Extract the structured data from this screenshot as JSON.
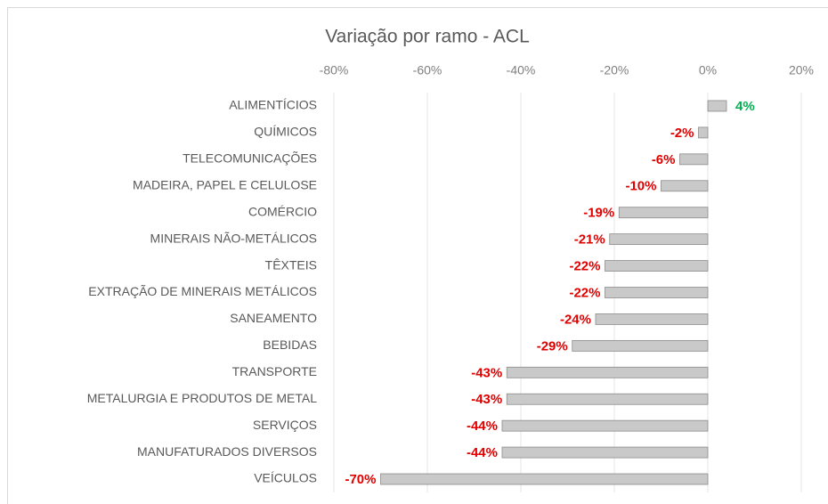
{
  "chart_data": {
    "type": "bar",
    "orientation": "horizontal",
    "title": "Variação por ramo - ACL",
    "categories": [
      "ALIMENTÍCIOS",
      "QUÍMICOS",
      "TELECOMUNICAÇÕES",
      "MADEIRA, PAPEL E CELULOSE",
      "COMÉRCIO",
      "MINERAIS NÃO-METÁLICOS",
      "TÊXTEIS",
      "EXTRAÇÃO DE MINERAIS METÁLICOS",
      "SANEAMENTO",
      "BEBIDAS",
      "TRANSPORTE",
      "METALURGIA E PRODUTOS DE METAL",
      "SERVIÇOS",
      "MANUFATURADOS DIVERSOS",
      "VEÍCULOS"
    ],
    "values": [
      4,
      -2,
      -6,
      -10,
      -19,
      -21,
      -22,
      -22,
      -24,
      -29,
      -43,
      -43,
      -44,
      -44,
      -70
    ],
    "value_labels": [
      "4%",
      "-2%",
      "-6%",
      "-10%",
      "-19%",
      "-21%",
      "-22%",
      "-22%",
      "-24%",
      "-29%",
      "-43%",
      "-43%",
      "-44%",
      "-44%",
      "-70%"
    ],
    "color": "#c9c9c9",
    "label_colors": {
      "positive": "#00b050",
      "negative": "#e00000"
    },
    "xlim": [
      -80,
      20
    ],
    "xticks": [
      {
        "value": -80,
        "label": "-80%"
      },
      {
        "value": -60,
        "label": "-60%"
      },
      {
        "value": -40,
        "label": "-40%"
      },
      {
        "value": -20,
        "label": "-20%"
      },
      {
        "value": 0,
        "label": "0%"
      },
      {
        "value": 20,
        "label": "20%"
      }
    ],
    "grid": true
  }
}
